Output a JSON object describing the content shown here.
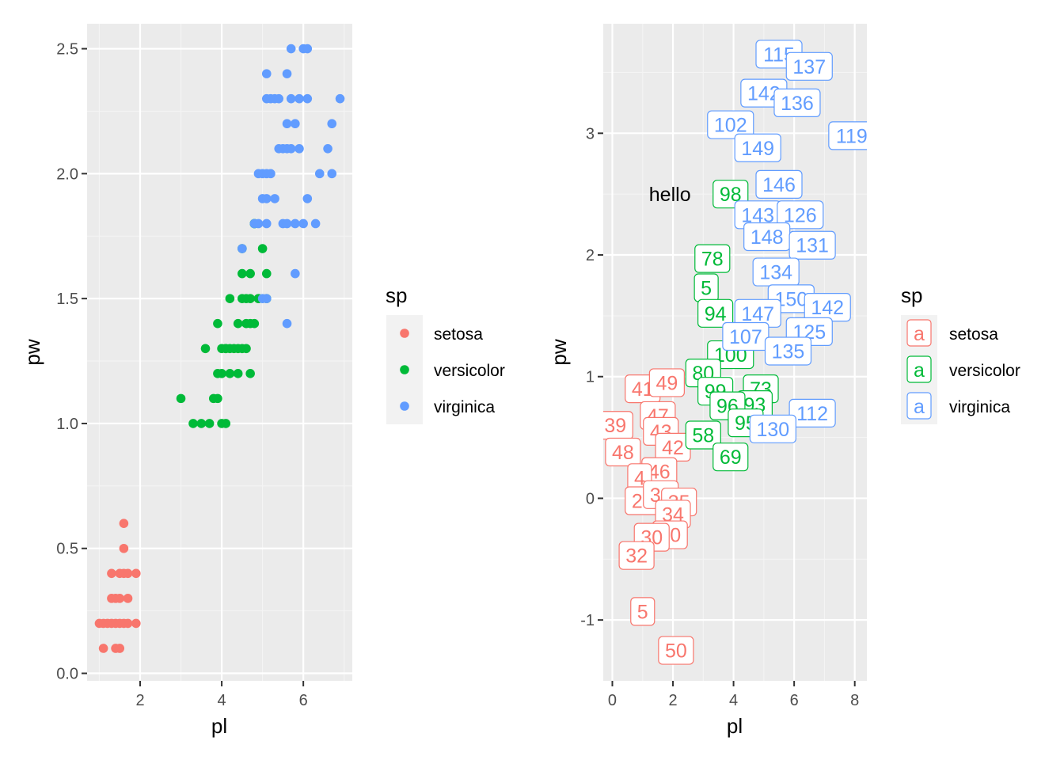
{
  "colors": {
    "setosa": "#F8766D",
    "versicolor": "#00BA38",
    "virginica": "#619CFF"
  },
  "chart_data": [
    {
      "type": "scatter",
      "xlabel": "pl",
      "ylabel": "pw",
      "xlim": [
        0.7,
        7.2
      ],
      "ylim": [
        -0.03,
        2.6
      ],
      "xticks": [
        2,
        4,
        6
      ],
      "yticks": [
        0.0,
        0.5,
        1.0,
        1.5,
        2.0,
        2.5
      ],
      "ytick_labels": [
        "0.0",
        "0.5",
        "1.0",
        "1.5",
        "2.0",
        "2.5"
      ],
      "grid": true,
      "legend": {
        "title": "sp",
        "position": "right",
        "entries": [
          "setosa",
          "versicolor",
          "virginica"
        ]
      },
      "series": [
        {
          "name": "setosa",
          "points": [
            [
              1.0,
              0.2
            ],
            [
              1.1,
              0.2
            ],
            [
              1.2,
              0.2
            ],
            [
              1.3,
              0.2
            ],
            [
              1.4,
              0.2
            ],
            [
              1.5,
              0.2
            ],
            [
              1.6,
              0.2
            ],
            [
              1.7,
              0.2
            ],
            [
              1.9,
              0.2
            ],
            [
              1.1,
              0.1
            ],
            [
              1.4,
              0.1
            ],
            [
              1.5,
              0.1
            ],
            [
              1.3,
              0.3
            ],
            [
              1.4,
              0.3
            ],
            [
              1.5,
              0.3
            ],
            [
              1.7,
              0.3
            ],
            [
              1.3,
              0.4
            ],
            [
              1.5,
              0.4
            ],
            [
              1.6,
              0.4
            ],
            [
              1.7,
              0.4
            ],
            [
              1.9,
              0.4
            ],
            [
              1.6,
              0.6
            ],
            [
              1.6,
              0.5
            ]
          ]
        },
        {
          "name": "versicolor",
          "points": [
            [
              3.0,
              1.1
            ],
            [
              3.3,
              1.0
            ],
            [
              3.5,
              1.0
            ],
            [
              3.7,
              1.0
            ],
            [
              4.0,
              1.0
            ],
            [
              4.1,
              1.0
            ],
            [
              3.6,
              1.3
            ],
            [
              3.9,
              1.1
            ],
            [
              3.8,
              1.1
            ],
            [
              3.9,
              1.2
            ],
            [
              4.0,
              1.2
            ],
            [
              4.2,
              1.2
            ],
            [
              4.4,
              1.2
            ],
            [
              4.7,
              1.2
            ],
            [
              3.9,
              1.4
            ],
            [
              4.0,
              1.3
            ],
            [
              4.1,
              1.3
            ],
            [
              4.2,
              1.3
            ],
            [
              4.3,
              1.3
            ],
            [
              4.4,
              1.3
            ],
            [
              4.5,
              1.3
            ],
            [
              4.6,
              1.3
            ],
            [
              4.4,
              1.4
            ],
            [
              4.6,
              1.4
            ],
            [
              4.7,
              1.4
            ],
            [
              4.8,
              1.4
            ],
            [
              4.2,
              1.5
            ],
            [
              4.5,
              1.5
            ],
            [
              4.6,
              1.5
            ],
            [
              4.7,
              1.5
            ],
            [
              4.9,
              1.5
            ],
            [
              5.1,
              1.6
            ],
            [
              4.5,
              1.6
            ],
            [
              4.7,
              1.6
            ],
            [
              4.8,
              1.8
            ],
            [
              4.5,
              1.7
            ],
            [
              5.0,
              1.7
            ],
            [
              4.9,
              1.5
            ],
            [
              5.1,
              1.5
            ],
            [
              4.1,
              1.3
            ],
            [
              4.8,
              1.8
            ]
          ]
        },
        {
          "name": "virginica",
          "points": [
            [
              4.5,
              1.7
            ],
            [
              4.9,
              1.8
            ],
            [
              5.0,
              1.5
            ],
            [
              5.1,
              1.5
            ],
            [
              5.6,
              1.4
            ],
            [
              5.8,
              1.6
            ],
            [
              4.8,
              1.8
            ],
            [
              5.1,
              1.8
            ],
            [
              5.5,
              1.8
            ],
            [
              5.6,
              1.8
            ],
            [
              5.8,
              1.8
            ],
            [
              6.0,
              1.8
            ],
            [
              6.3,
              1.8
            ],
            [
              5.0,
              1.9
            ],
            [
              5.1,
              1.9
            ],
            [
              5.3,
              1.9
            ],
            [
              6.1,
              1.9
            ],
            [
              4.9,
              2.0
            ],
            [
              5.0,
              2.0
            ],
            [
              5.1,
              2.0
            ],
            [
              5.2,
              2.0
            ],
            [
              6.4,
              2.0
            ],
            [
              6.7,
              2.0
            ],
            [
              5.4,
              2.1
            ],
            [
              5.5,
              2.1
            ],
            [
              5.6,
              2.1
            ],
            [
              5.7,
              2.1
            ],
            [
              5.9,
              2.1
            ],
            [
              6.6,
              2.1
            ],
            [
              5.6,
              2.2
            ],
            [
              5.8,
              2.2
            ],
            [
              6.7,
              2.2
            ],
            [
              5.1,
              2.3
            ],
            [
              5.2,
              2.3
            ],
            [
              5.3,
              2.3
            ],
            [
              5.4,
              2.3
            ],
            [
              5.7,
              2.3
            ],
            [
              5.9,
              2.3
            ],
            [
              6.1,
              2.3
            ],
            [
              6.9,
              2.3
            ],
            [
              5.1,
              2.4
            ],
            [
              5.6,
              2.4
            ],
            [
              5.7,
              2.5
            ],
            [
              6.0,
              2.5
            ],
            [
              6.1,
              2.5
            ]
          ]
        }
      ]
    },
    {
      "type": "scatter",
      "xlabel": "pl",
      "ylabel": "pw",
      "xlim": [
        -0.3,
        8.4
      ],
      "ylim": [
        -1.5,
        3.9
      ],
      "xticks": [
        0,
        2,
        4,
        6,
        8
      ],
      "yticks": [
        -1,
        0,
        1,
        2,
        3
      ],
      "grid": true,
      "annotation": {
        "text": "hello",
        "x": 1.9,
        "y": 2.5
      },
      "legend": {
        "title": "sp",
        "position": "right",
        "key_glyph": "a",
        "entries": [
          "setosa",
          "versicolor",
          "virginica"
        ]
      },
      "labels": [
        {
          "sp": "setosa",
          "text": "41",
          "x": 1.0,
          "y": 0.9
        },
        {
          "sp": "setosa",
          "text": "49",
          "x": 1.8,
          "y": 0.95
        },
        {
          "sp": "setosa",
          "text": "47",
          "x": 1.5,
          "y": 0.68
        },
        {
          "sp": "setosa",
          "text": "43",
          "x": 1.6,
          "y": 0.55
        },
        {
          "sp": "setosa",
          "text": "42",
          "x": 2.0,
          "y": 0.42
        },
        {
          "sp": "setosa",
          "text": "39",
          "x": 0.1,
          "y": 0.6
        },
        {
          "sp": "setosa",
          "text": "48",
          "x": 0.35,
          "y": 0.38
        },
        {
          "sp": "setosa",
          "text": "46",
          "x": 1.55,
          "y": 0.22
        },
        {
          "sp": "setosa",
          "text": "4",
          "x": 0.9,
          "y": 0.17
        },
        {
          "sp": "setosa",
          "text": "20",
          "x": 1.0,
          "y": -0.02
        },
        {
          "sp": "setosa",
          "text": "33",
          "x": 1.6,
          "y": 0.03
        },
        {
          "sp": "setosa",
          "text": "35",
          "x": 2.2,
          "y": -0.03
        },
        {
          "sp": "setosa",
          "text": "34",
          "x": 2.0,
          "y": -0.13
        },
        {
          "sp": "setosa",
          "text": "20",
          "x": 1.9,
          "y": -0.3
        },
        {
          "sp": "setosa",
          "text": "30",
          "x": 1.3,
          "y": -0.32
        },
        {
          "sp": "setosa",
          "text": "32",
          "x": 0.8,
          "y": -0.47
        },
        {
          "sp": "setosa",
          "text": "5",
          "x": 1.0,
          "y": -0.93
        },
        {
          "sp": "setosa",
          "text": "50",
          "x": 2.1,
          "y": -1.25
        },
        {
          "sp": "versicolor",
          "text": "98",
          "x": 3.9,
          "y": 2.5
        },
        {
          "sp": "versicolor",
          "text": "78",
          "x": 3.3,
          "y": 1.97
        },
        {
          "sp": "versicolor",
          "text": "5",
          "x": 3.1,
          "y": 1.73
        },
        {
          "sp": "versicolor",
          "text": "94",
          "x": 3.4,
          "y": 1.52
        },
        {
          "sp": "versicolor",
          "text": "100",
          "x": 3.9,
          "y": 1.18
        },
        {
          "sp": "versicolor",
          "text": "80",
          "x": 3.0,
          "y": 1.03
        },
        {
          "sp": "versicolor",
          "text": "73",
          "x": 4.9,
          "y": 0.9
        },
        {
          "sp": "versicolor",
          "text": "99",
          "x": 3.4,
          "y": 0.88
        },
        {
          "sp": "versicolor",
          "text": "93",
          "x": 4.7,
          "y": 0.77
        },
        {
          "sp": "versicolor",
          "text": "96",
          "x": 3.8,
          "y": 0.76
        },
        {
          "sp": "versicolor",
          "text": "95",
          "x": 4.4,
          "y": 0.62
        },
        {
          "sp": "versicolor",
          "text": "58",
          "x": 3.0,
          "y": 0.52
        },
        {
          "sp": "versicolor",
          "text": "69",
          "x": 3.9,
          "y": 0.34
        },
        {
          "sp": "virginica",
          "text": "115",
          "x": 5.5,
          "y": 3.65
        },
        {
          "sp": "virginica",
          "text": "137",
          "x": 6.5,
          "y": 3.55
        },
        {
          "sp": "virginica",
          "text": "142",
          "x": 5.0,
          "y": 3.33
        },
        {
          "sp": "virginica",
          "text": "136",
          "x": 6.1,
          "y": 3.25
        },
        {
          "sp": "virginica",
          "text": "102",
          "x": 3.9,
          "y": 3.07
        },
        {
          "sp": "virginica",
          "text": "119",
          "x": 7.9,
          "y": 2.98
        },
        {
          "sp": "virginica",
          "text": "149",
          "x": 4.8,
          "y": 2.88
        },
        {
          "sp": "virginica",
          "text": "146",
          "x": 5.5,
          "y": 2.58
        },
        {
          "sp": "virginica",
          "text": "143",
          "x": 4.8,
          "y": 2.33
        },
        {
          "sp": "virginica",
          "text": "126",
          "x": 6.2,
          "y": 2.33
        },
        {
          "sp": "virginica",
          "text": "148",
          "x": 5.1,
          "y": 2.15
        },
        {
          "sp": "virginica",
          "text": "131",
          "x": 6.6,
          "y": 2.08
        },
        {
          "sp": "virginica",
          "text": "134",
          "x": 5.4,
          "y": 1.86
        },
        {
          "sp": "virginica",
          "text": "150",
          "x": 5.9,
          "y": 1.64
        },
        {
          "sp": "virginica",
          "text": "142",
          "x": 7.1,
          "y": 1.57
        },
        {
          "sp": "virginica",
          "text": "147",
          "x": 4.8,
          "y": 1.52
        },
        {
          "sp": "virginica",
          "text": "125",
          "x": 6.5,
          "y": 1.37
        },
        {
          "sp": "virginica",
          "text": "107",
          "x": 4.4,
          "y": 1.33
        },
        {
          "sp": "virginica",
          "text": "135",
          "x": 5.8,
          "y": 1.21
        },
        {
          "sp": "virginica",
          "text": "112",
          "x": 6.6,
          "y": 0.7
        },
        {
          "sp": "virginica",
          "text": "130",
          "x": 5.3,
          "y": 0.57
        }
      ]
    }
  ]
}
